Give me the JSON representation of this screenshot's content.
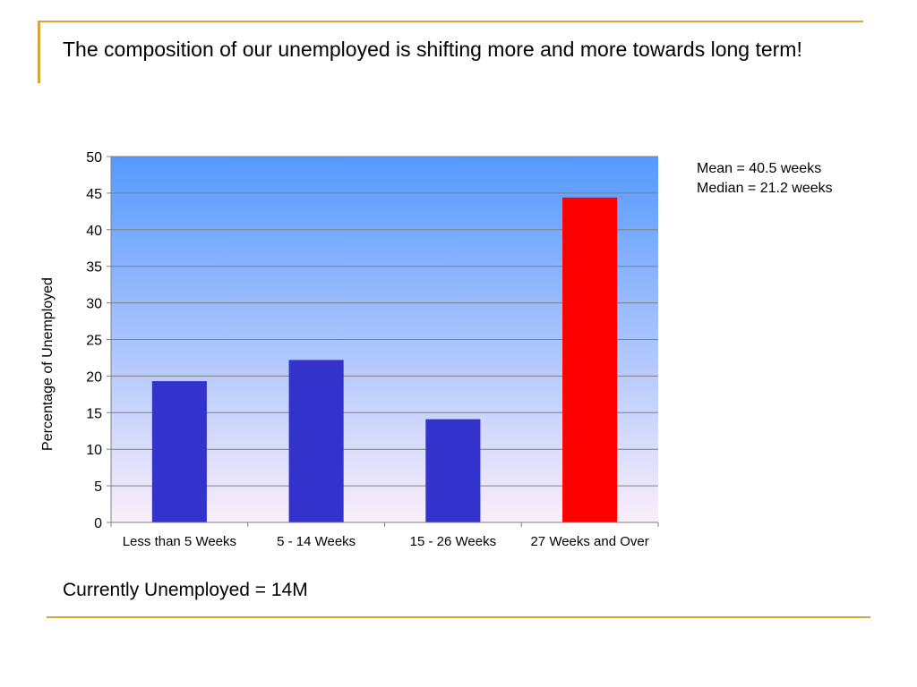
{
  "slide": {
    "title": "The composition of our unemployed is shifting more and more towards long term!",
    "stats": [
      "Mean = 40.5 weeks",
      "Median = 21.2 weeks"
    ],
    "footer": "Currently Unemployed = 14M"
  },
  "colors": {
    "accent_line": "#d4a537",
    "bar_default": "#3333cc",
    "bar_highlight": "#ff0000",
    "plot_gradient_top": "#5599ff",
    "plot_gradient_bottom": "#fbeefa"
  },
  "chart_data": {
    "type": "bar",
    "title": "",
    "xlabel": "",
    "ylabel": "Percentage of Unemployed",
    "categories": [
      "Less than 5 Weeks",
      "5 - 14 Weeks",
      "15 - 26 Weeks",
      "27 Weeks and Over"
    ],
    "values": [
      19.3,
      22.2,
      14.1,
      44.4
    ],
    "highlight_index": 3,
    "ylim": [
      0,
      50
    ],
    "yticks": [
      0,
      5,
      10,
      15,
      20,
      25,
      30,
      35,
      40,
      45,
      50
    ],
    "grid": true,
    "legend": "none"
  }
}
